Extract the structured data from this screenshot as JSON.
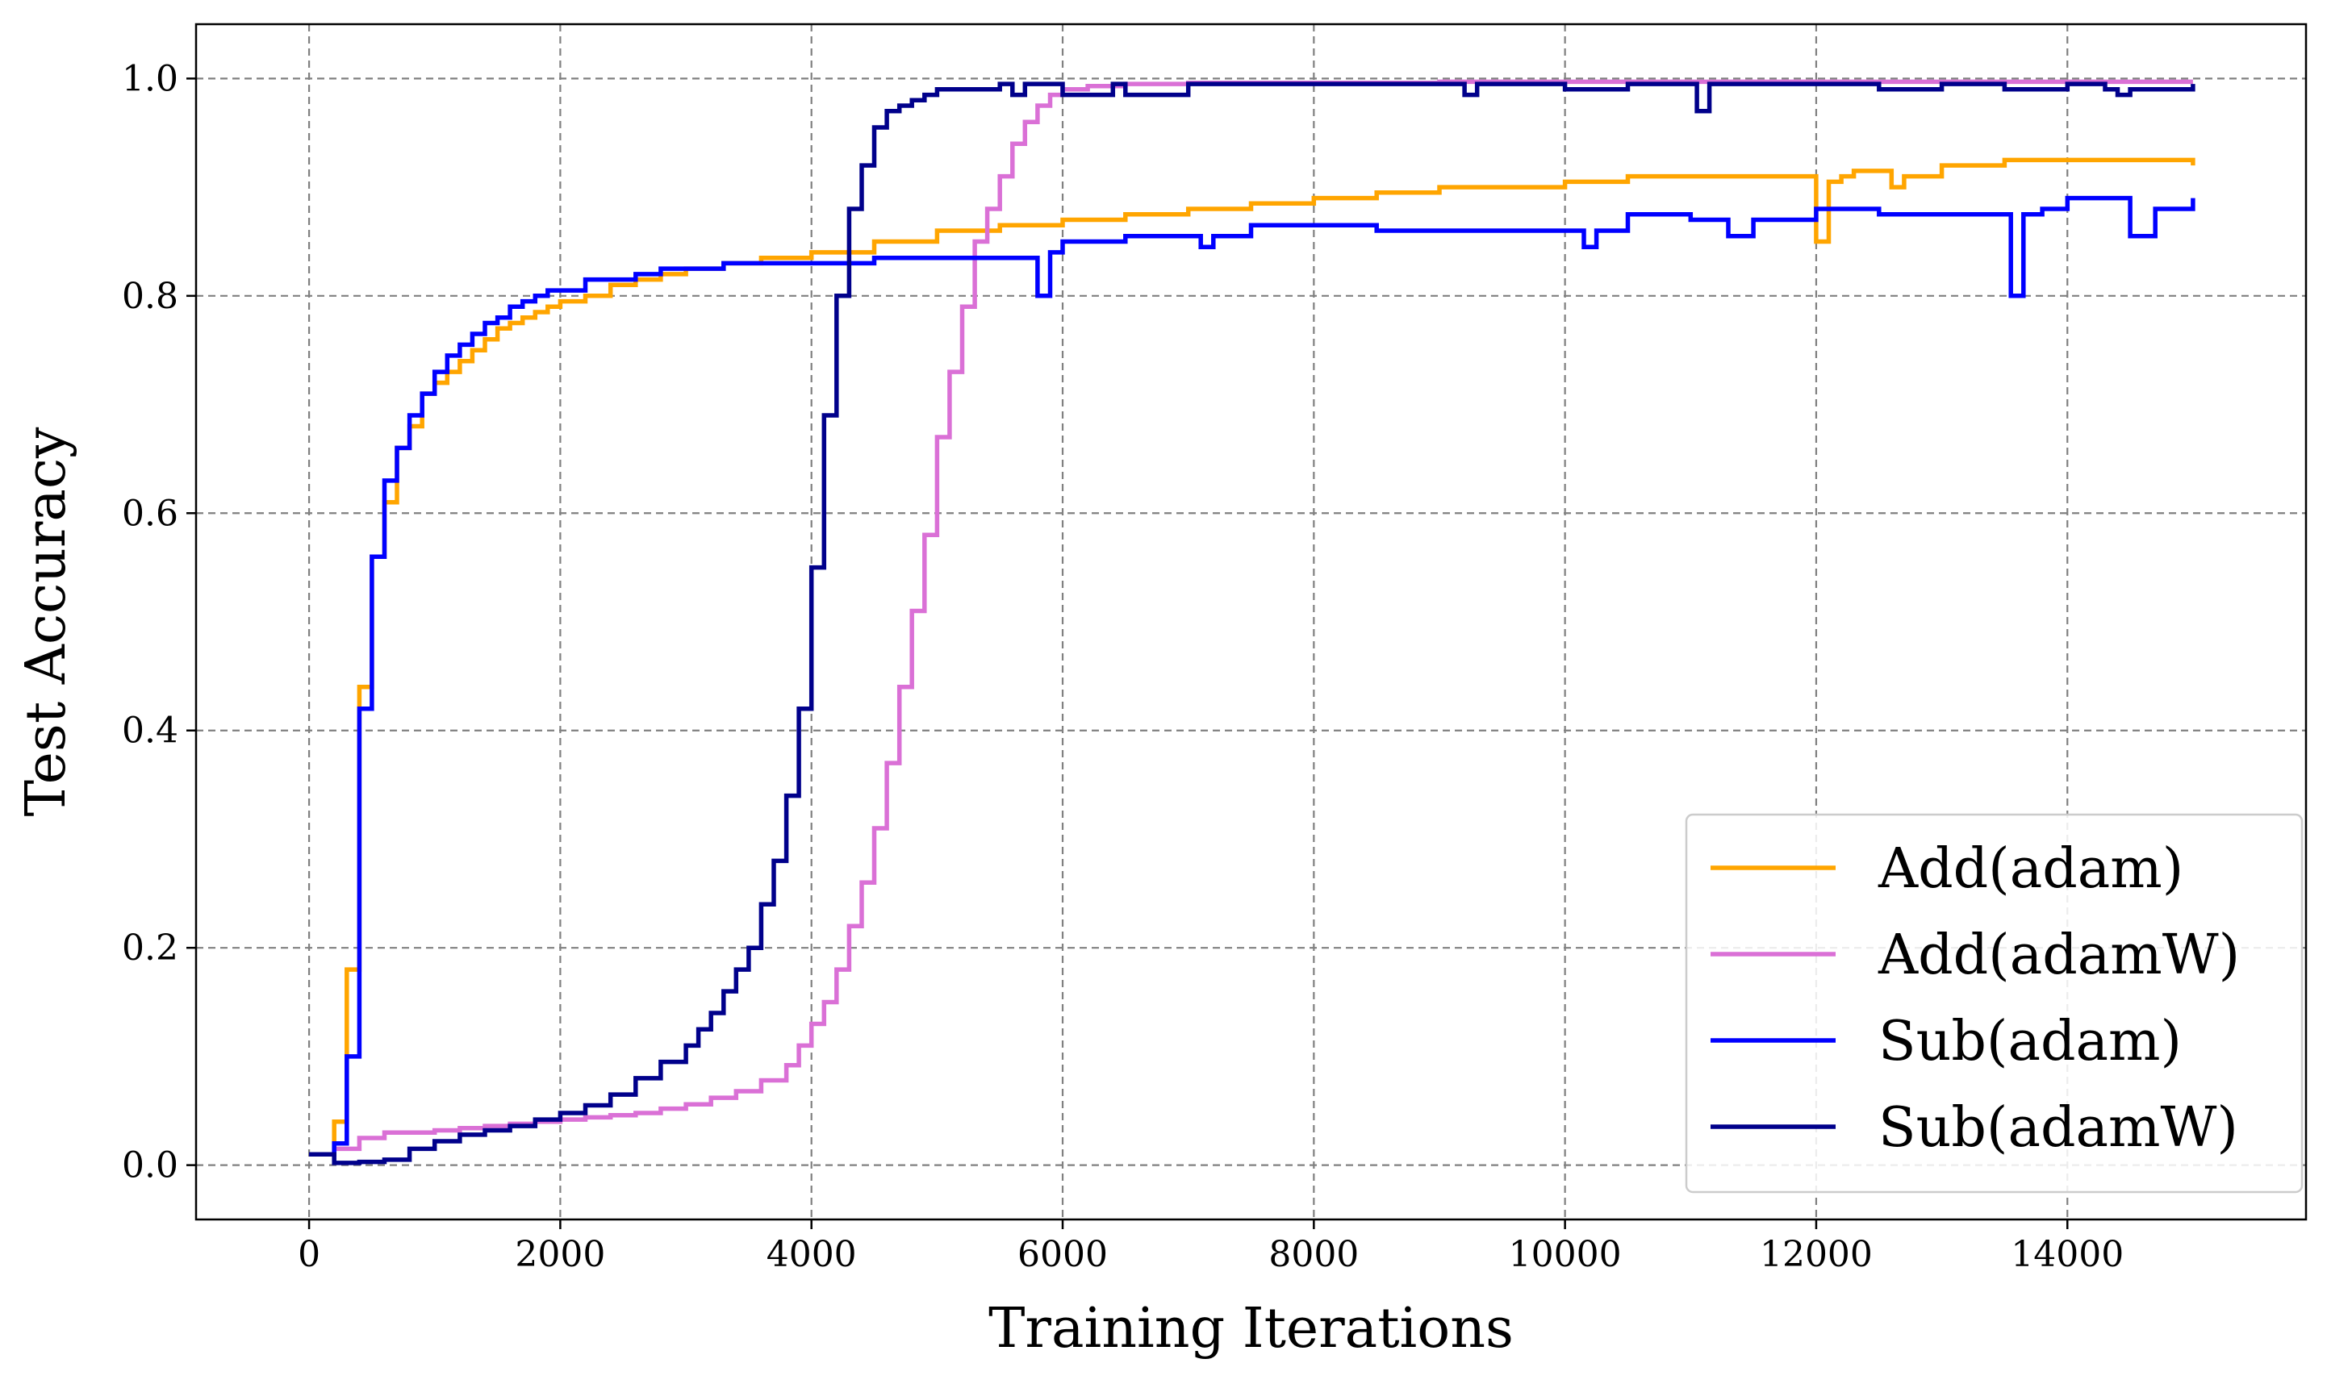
{
  "chart_data": {
    "type": "line",
    "title": "",
    "xlabel": "Training Iterations",
    "ylabel": "Test Accuracy",
    "xlim": [
      -900,
      15900
    ],
    "ylim": [
      -0.05,
      1.05
    ],
    "xticks": [
      0,
      2000,
      4000,
      6000,
      8000,
      10000,
      12000,
      14000
    ],
    "xtick_labels": [
      "0",
      "2000",
      "4000",
      "6000",
      "8000",
      "10000",
      "12000",
      "14000"
    ],
    "yticks": [
      0.0,
      0.2,
      0.4,
      0.6,
      0.8,
      1.0
    ],
    "ytick_labels": [
      "0.0",
      "0.2",
      "0.4",
      "0.6",
      "0.8",
      "1.0"
    ],
    "grid": true,
    "legend_position": "lower-right",
    "step": true,
    "series": [
      {
        "name": "Add(adam)",
        "color": "#FFA500",
        "x": [
          0,
          100,
          200,
          300,
          400,
          500,
          600,
          700,
          800,
          900,
          1000,
          1100,
          1200,
          1300,
          1400,
          1500,
          1600,
          1700,
          1800,
          1900,
          2000,
          2200,
          2400,
          2600,
          2800,
          3000,
          3300,
          3600,
          4000,
          4500,
          5000,
          5500,
          6000,
          6500,
          7000,
          7500,
          8000,
          8500,
          9000,
          9500,
          10000,
          10500,
          11000,
          11500,
          11950,
          12000,
          12100,
          12200,
          12300,
          12600,
          12700,
          13000,
          13500,
          14000,
          14500,
          15000
        ],
        "y": [
          0.01,
          0.01,
          0.04,
          0.18,
          0.44,
          0.56,
          0.61,
          0.66,
          0.68,
          0.71,
          0.72,
          0.73,
          0.74,
          0.75,
          0.76,
          0.77,
          0.775,
          0.78,
          0.785,
          0.79,
          0.795,
          0.8,
          0.81,
          0.815,
          0.82,
          0.825,
          0.83,
          0.835,
          0.84,
          0.85,
          0.86,
          0.865,
          0.87,
          0.875,
          0.88,
          0.885,
          0.89,
          0.895,
          0.9,
          0.9,
          0.905,
          0.91,
          0.91,
          0.91,
          0.91,
          0.85,
          0.905,
          0.91,
          0.915,
          0.9,
          0.91,
          0.92,
          0.925,
          0.925,
          0.925,
          0.92
        ]
      },
      {
        "name": "Add(adamW)",
        "color": "#DA70D6",
        "x": [
          0,
          200,
          400,
          600,
          800,
          1000,
          1200,
          1400,
          1600,
          1800,
          2000,
          2200,
          2400,
          2600,
          2800,
          3000,
          3200,
          3400,
          3600,
          3800,
          3900,
          4000,
          4100,
          4200,
          4300,
          4400,
          4500,
          4600,
          4700,
          4800,
          4900,
          5000,
          5100,
          5200,
          5300,
          5400,
          5500,
          5600,
          5700,
          5800,
          5900,
          6000,
          6200,
          6500,
          7000,
          8000,
          9000,
          10000,
          11000,
          12000,
          13000,
          14000,
          15000
        ],
        "y": [
          0.01,
          0.015,
          0.025,
          0.03,
          0.03,
          0.032,
          0.034,
          0.036,
          0.038,
          0.04,
          0.042,
          0.044,
          0.046,
          0.048,
          0.052,
          0.056,
          0.062,
          0.068,
          0.078,
          0.092,
          0.11,
          0.13,
          0.15,
          0.18,
          0.22,
          0.26,
          0.31,
          0.37,
          0.44,
          0.51,
          0.58,
          0.67,
          0.73,
          0.79,
          0.85,
          0.88,
          0.91,
          0.94,
          0.96,
          0.975,
          0.985,
          0.99,
          0.993,
          0.995,
          0.996,
          0.996,
          0.997,
          0.997,
          0.997,
          0.997,
          0.997,
          0.997,
          0.997
        ]
      },
      {
        "name": "Sub(adam)",
        "color": "#0000FF",
        "x": [
          0,
          100,
          200,
          300,
          400,
          500,
          600,
          700,
          800,
          900,
          1000,
          1100,
          1200,
          1300,
          1400,
          1500,
          1600,
          1700,
          1800,
          1900,
          2000,
          2200,
          2400,
          2600,
          2800,
          3000,
          3300,
          3600,
          4000,
          4500,
          5000,
          5500,
          5800,
          5900,
          6000,
          6500,
          7000,
          7100,
          7200,
          7500,
          8000,
          8500,
          9000,
          9500,
          10000,
          10150,
          10250,
          10500,
          11000,
          11300,
          11500,
          12000,
          12500,
          13000,
          13500,
          13550,
          13650,
          13800,
          14000,
          14400,
          14500,
          14700,
          15000
        ],
        "y": [
          0.01,
          0.01,
          0.02,
          0.1,
          0.42,
          0.56,
          0.63,
          0.66,
          0.69,
          0.71,
          0.73,
          0.745,
          0.755,
          0.765,
          0.775,
          0.78,
          0.79,
          0.795,
          0.8,
          0.805,
          0.805,
          0.815,
          0.815,
          0.82,
          0.825,
          0.825,
          0.83,
          0.83,
          0.83,
          0.835,
          0.835,
          0.835,
          0.8,
          0.84,
          0.85,
          0.855,
          0.855,
          0.845,
          0.855,
          0.865,
          0.865,
          0.86,
          0.86,
          0.86,
          0.86,
          0.845,
          0.86,
          0.875,
          0.87,
          0.855,
          0.87,
          0.88,
          0.875,
          0.875,
          0.875,
          0.8,
          0.875,
          0.88,
          0.89,
          0.89,
          0.855,
          0.88,
          0.89
        ]
      },
      {
        "name": "Sub(adamW)",
        "color": "#00008B",
        "x": [
          0,
          100,
          200,
          400,
          600,
          800,
          1000,
          1200,
          1400,
          1600,
          1800,
          2000,
          2200,
          2400,
          2600,
          2800,
          3000,
          3100,
          3200,
          3300,
          3400,
          3500,
          3600,
          3700,
          3800,
          3900,
          4000,
          4100,
          4200,
          4300,
          4400,
          4500,
          4600,
          4700,
          4800,
          4900,
          5000,
          5200,
          5500,
          5600,
          5700,
          6000,
          6400,
          6500,
          7000,
          8000,
          9000,
          9200,
          9300,
          10000,
          10500,
          11000,
          11050,
          11150,
          12000,
          12500,
          13000,
          13500,
          14000,
          14300,
          14400,
          14500,
          15000
        ],
        "y": [
          0.01,
          0.01,
          0.002,
          0.003,
          0.005,
          0.015,
          0.022,
          0.028,
          0.032,
          0.036,
          0.042,
          0.048,
          0.055,
          0.065,
          0.08,
          0.095,
          0.11,
          0.125,
          0.14,
          0.16,
          0.18,
          0.2,
          0.24,
          0.28,
          0.34,
          0.42,
          0.55,
          0.69,
          0.8,
          0.88,
          0.92,
          0.955,
          0.97,
          0.975,
          0.98,
          0.985,
          0.99,
          0.99,
          0.995,
          0.985,
          0.995,
          0.985,
          0.995,
          0.985,
          0.995,
          0.995,
          0.995,
          0.985,
          0.995,
          0.99,
          0.995,
          0.995,
          0.97,
          0.995,
          0.995,
          0.99,
          0.995,
          0.99,
          0.995,
          0.99,
          0.985,
          0.99,
          0.995
        ]
      }
    ]
  }
}
